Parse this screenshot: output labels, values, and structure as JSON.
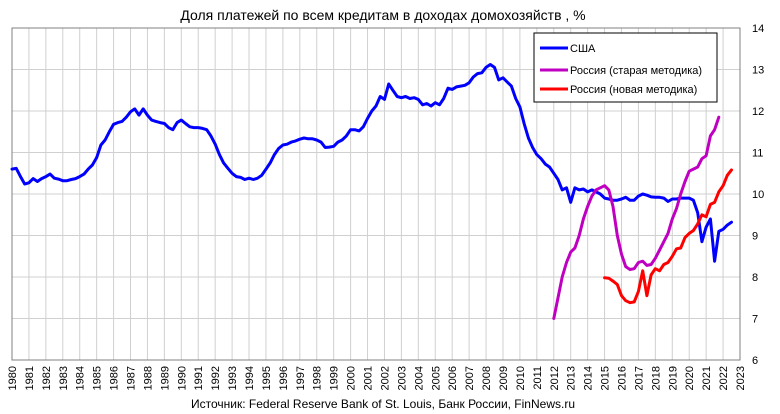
{
  "chart_data": {
    "type": "line",
    "title": "Доля платежей по всем кредитам в доходах домохозяйств , %",
    "source": "Источник: Federal Reserve Bank of St. Louis, Банк России, FinNews.ru",
    "x_ticks": [
      "1980",
      "1981",
      "1982",
      "1983",
      "1984",
      "1985",
      "1986",
      "1987",
      "1988",
      "1989",
      "1990",
      "1991",
      "1992",
      "1993",
      "1994",
      "1995",
      "1996",
      "1997",
      "1998",
      "1999",
      "2000",
      "2001",
      "2002",
      "2003",
      "2004",
      "2005",
      "2006",
      "2007",
      "2008",
      "2009",
      "2010",
      "2011",
      "2012",
      "2013",
      "2014",
      "2015",
      "2016",
      "2017",
      "2018",
      "2019",
      "2020",
      "2021",
      "2022",
      "2023"
    ],
    "y_ticks": [
      "6",
      "7",
      "8",
      "9",
      "10",
      "11",
      "12",
      "13",
      "14"
    ],
    "ylim": [
      6,
      14
    ],
    "xlim": [
      1980,
      2023
    ],
    "y_axis_side": "right",
    "grid": true,
    "legend_position": "top-right",
    "series": [
      {
        "name": "США",
        "color": "#0000ff",
        "points": [
          [
            1980.0,
            10.6
          ],
          [
            1980.25,
            10.62
          ],
          [
            1980.5,
            10.42
          ],
          [
            1980.75,
            10.24
          ],
          [
            1981.0,
            10.27
          ],
          [
            1981.25,
            10.37
          ],
          [
            1981.5,
            10.3
          ],
          [
            1981.75,
            10.37
          ],
          [
            1982.0,
            10.42
          ],
          [
            1982.25,
            10.48
          ],
          [
            1982.5,
            10.38
          ],
          [
            1982.75,
            10.36
          ],
          [
            1983.0,
            10.32
          ],
          [
            1983.25,
            10.32
          ],
          [
            1983.5,
            10.35
          ],
          [
            1983.75,
            10.37
          ],
          [
            1984.0,
            10.42
          ],
          [
            1984.25,
            10.48
          ],
          [
            1984.5,
            10.6
          ],
          [
            1984.75,
            10.7
          ],
          [
            1985.0,
            10.88
          ],
          [
            1985.25,
            11.18
          ],
          [
            1985.5,
            11.3
          ],
          [
            1985.75,
            11.5
          ],
          [
            1986.0,
            11.68
          ],
          [
            1986.25,
            11.72
          ],
          [
            1986.5,
            11.75
          ],
          [
            1986.75,
            11.85
          ],
          [
            1987.0,
            11.98
          ],
          [
            1987.25,
            12.05
          ],
          [
            1987.5,
            11.9
          ],
          [
            1987.75,
            12.05
          ],
          [
            1988.0,
            11.9
          ],
          [
            1988.25,
            11.78
          ],
          [
            1988.5,
            11.75
          ],
          [
            1988.75,
            11.72
          ],
          [
            1989.0,
            11.7
          ],
          [
            1989.25,
            11.6
          ],
          [
            1989.5,
            11.55
          ],
          [
            1989.75,
            11.72
          ],
          [
            1990.0,
            11.78
          ],
          [
            1990.25,
            11.7
          ],
          [
            1990.5,
            11.62
          ],
          [
            1990.75,
            11.6
          ],
          [
            1991.0,
            11.6
          ],
          [
            1991.25,
            11.58
          ],
          [
            1991.5,
            11.55
          ],
          [
            1991.75,
            11.4
          ],
          [
            1992.0,
            11.2
          ],
          [
            1992.25,
            10.95
          ],
          [
            1992.5,
            10.75
          ],
          [
            1992.75,
            10.62
          ],
          [
            1993.0,
            10.5
          ],
          [
            1993.25,
            10.42
          ],
          [
            1993.5,
            10.4
          ],
          [
            1993.75,
            10.35
          ],
          [
            1994.0,
            10.38
          ],
          [
            1994.25,
            10.35
          ],
          [
            1994.5,
            10.38
          ],
          [
            1994.75,
            10.45
          ],
          [
            1995.0,
            10.6
          ],
          [
            1995.25,
            10.75
          ],
          [
            1995.5,
            10.95
          ],
          [
            1995.75,
            11.1
          ],
          [
            1996.0,
            11.18
          ],
          [
            1996.25,
            11.2
          ],
          [
            1996.5,
            11.25
          ],
          [
            1996.75,
            11.28
          ],
          [
            1997.0,
            11.32
          ],
          [
            1997.25,
            11.35
          ],
          [
            1997.5,
            11.33
          ],
          [
            1997.75,
            11.33
          ],
          [
            1998.0,
            11.3
          ],
          [
            1998.25,
            11.25
          ],
          [
            1998.5,
            11.12
          ],
          [
            1998.75,
            11.13
          ],
          [
            1999.0,
            11.15
          ],
          [
            1999.25,
            11.25
          ],
          [
            1999.5,
            11.3
          ],
          [
            1999.75,
            11.4
          ],
          [
            2000.0,
            11.55
          ],
          [
            2000.25,
            11.55
          ],
          [
            2000.5,
            11.52
          ],
          [
            2000.75,
            11.62
          ],
          [
            2001.0,
            11.82
          ],
          [
            2001.25,
            12.0
          ],
          [
            2001.5,
            12.12
          ],
          [
            2001.75,
            12.35
          ],
          [
            2002.0,
            12.28
          ],
          [
            2002.25,
            12.65
          ],
          [
            2002.5,
            12.5
          ],
          [
            2002.75,
            12.35
          ],
          [
            2003.0,
            12.32
          ],
          [
            2003.25,
            12.35
          ],
          [
            2003.5,
            12.3
          ],
          [
            2003.75,
            12.32
          ],
          [
            2004.0,
            12.28
          ],
          [
            2004.25,
            12.15
          ],
          [
            2004.5,
            12.18
          ],
          [
            2004.75,
            12.12
          ],
          [
            2005.0,
            12.2
          ],
          [
            2005.25,
            12.15
          ],
          [
            2005.5,
            12.3
          ],
          [
            2005.75,
            12.55
          ],
          [
            2006.0,
            12.52
          ],
          [
            2006.25,
            12.58
          ],
          [
            2006.5,
            12.6
          ],
          [
            2006.75,
            12.62
          ],
          [
            2007.0,
            12.68
          ],
          [
            2007.25,
            12.82
          ],
          [
            2007.5,
            12.9
          ],
          [
            2007.75,
            12.92
          ],
          [
            2008.0,
            13.05
          ],
          [
            2008.25,
            13.12
          ],
          [
            2008.5,
            13.05
          ],
          [
            2008.75,
            12.75
          ],
          [
            2009.0,
            12.8
          ],
          [
            2009.25,
            12.7
          ],
          [
            2009.5,
            12.6
          ],
          [
            2009.75,
            12.3
          ],
          [
            2010.0,
            12.1
          ],
          [
            2010.25,
            11.7
          ],
          [
            2010.5,
            11.35
          ],
          [
            2010.75,
            11.12
          ],
          [
            2011.0,
            10.95
          ],
          [
            2011.25,
            10.85
          ],
          [
            2011.5,
            10.72
          ],
          [
            2011.75,
            10.65
          ],
          [
            2012.0,
            10.5
          ],
          [
            2012.25,
            10.35
          ],
          [
            2012.5,
            10.1
          ],
          [
            2012.75,
            10.15
          ],
          [
            2013.0,
            9.8
          ],
          [
            2013.25,
            10.15
          ],
          [
            2013.5,
            10.1
          ],
          [
            2013.75,
            10.12
          ],
          [
            2014.0,
            10.05
          ],
          [
            2014.25,
            10.1
          ],
          [
            2014.5,
            10.05
          ],
          [
            2014.75,
            10.0
          ],
          [
            2015.0,
            9.9
          ],
          [
            2015.25,
            9.88
          ],
          [
            2015.5,
            9.85
          ],
          [
            2015.75,
            9.85
          ],
          [
            2016.0,
            9.88
          ],
          [
            2016.25,
            9.92
          ],
          [
            2016.5,
            9.85
          ],
          [
            2016.75,
            9.85
          ],
          [
            2017.0,
            9.95
          ],
          [
            2017.25,
            10.0
          ],
          [
            2017.5,
            9.97
          ],
          [
            2017.75,
            9.93
          ],
          [
            2018.0,
            9.92
          ],
          [
            2018.25,
            9.92
          ],
          [
            2018.5,
            9.9
          ],
          [
            2018.75,
            9.82
          ],
          [
            2019.0,
            9.88
          ],
          [
            2019.25,
            9.88
          ],
          [
            2019.5,
            9.9
          ],
          [
            2019.75,
            9.9
          ],
          [
            2020.0,
            9.9
          ],
          [
            2020.25,
            9.85
          ],
          [
            2020.5,
            9.55
          ],
          [
            2020.75,
            8.85
          ],
          [
            2021.0,
            9.2
          ],
          [
            2021.25,
            9.4
          ],
          [
            2021.5,
            8.38
          ],
          [
            2021.75,
            9.1
          ],
          [
            2022.0,
            9.15
          ],
          [
            2022.25,
            9.25
          ],
          [
            2022.5,
            9.32
          ]
        ]
      },
      {
        "name": "Россия (старая методика)",
        "color": "#c000c0",
        "points": [
          [
            2012.0,
            7.0
          ],
          [
            2012.25,
            7.5
          ],
          [
            2012.5,
            8.0
          ],
          [
            2012.75,
            8.35
          ],
          [
            2013.0,
            8.6
          ],
          [
            2013.25,
            8.7
          ],
          [
            2013.5,
            9.0
          ],
          [
            2013.75,
            9.4
          ],
          [
            2014.0,
            9.7
          ],
          [
            2014.25,
            9.95
          ],
          [
            2014.5,
            10.1
          ],
          [
            2014.75,
            10.15
          ],
          [
            2015.0,
            10.2
          ],
          [
            2015.25,
            10.1
          ],
          [
            2015.5,
            9.7
          ],
          [
            2015.75,
            9.0
          ],
          [
            2016.0,
            8.55
          ],
          [
            2016.25,
            8.25
          ],
          [
            2016.5,
            8.18
          ],
          [
            2016.75,
            8.2
          ],
          [
            2017.0,
            8.35
          ],
          [
            2017.25,
            8.38
          ],
          [
            2017.5,
            8.28
          ],
          [
            2017.75,
            8.3
          ],
          [
            2018.0,
            8.45
          ],
          [
            2018.25,
            8.65
          ],
          [
            2018.5,
            8.85
          ],
          [
            2018.75,
            9.05
          ],
          [
            2019.0,
            9.4
          ],
          [
            2019.25,
            9.65
          ],
          [
            2019.5,
            10.0
          ],
          [
            2019.75,
            10.3
          ],
          [
            2020.0,
            10.55
          ],
          [
            2020.25,
            10.6
          ],
          [
            2020.5,
            10.65
          ],
          [
            2020.75,
            10.85
          ],
          [
            2021.0,
            10.92
          ],
          [
            2021.25,
            11.4
          ],
          [
            2021.5,
            11.55
          ],
          [
            2021.75,
            11.85
          ]
        ]
      },
      {
        "name": "Россия (новая методика)",
        "color": "#ff0000",
        "points": [
          [
            2015.0,
            7.98
          ],
          [
            2015.25,
            7.97
          ],
          [
            2015.5,
            7.9
          ],
          [
            2015.75,
            7.82
          ],
          [
            2016.0,
            7.55
          ],
          [
            2016.25,
            7.43
          ],
          [
            2016.5,
            7.38
          ],
          [
            2016.75,
            7.4
          ],
          [
            2017.0,
            7.65
          ],
          [
            2017.25,
            8.15
          ],
          [
            2017.5,
            7.55
          ],
          [
            2017.75,
            8.05
          ],
          [
            2018.0,
            8.2
          ],
          [
            2018.25,
            8.15
          ],
          [
            2018.5,
            8.3
          ],
          [
            2018.75,
            8.35
          ],
          [
            2019.0,
            8.5
          ],
          [
            2019.25,
            8.68
          ],
          [
            2019.5,
            8.7
          ],
          [
            2019.75,
            8.95
          ],
          [
            2020.0,
            9.05
          ],
          [
            2020.25,
            9.12
          ],
          [
            2020.5,
            9.28
          ],
          [
            2020.75,
            9.5
          ],
          [
            2021.0,
            9.45
          ],
          [
            2021.25,
            9.75
          ],
          [
            2021.5,
            9.8
          ],
          [
            2021.75,
            10.05
          ],
          [
            2022.0,
            10.2
          ],
          [
            2022.25,
            10.45
          ],
          [
            2022.5,
            10.58
          ]
        ]
      }
    ]
  }
}
